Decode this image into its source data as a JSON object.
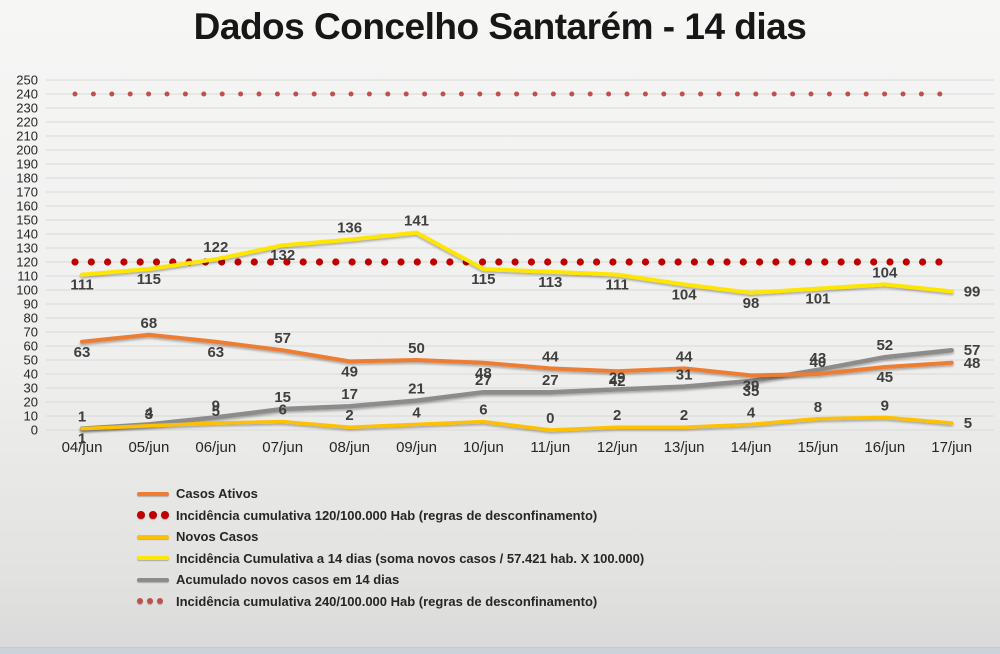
{
  "title": "Dados Concelho Santarém - 14 dias",
  "chart_data": {
    "type": "line",
    "title": "Dados Concelho Santarém - 14 dias",
    "xlabel": "",
    "ylabel": "",
    "ylim": [
      0,
      250
    ],
    "y_tick_step": 10,
    "y_ticks": [
      0,
      10,
      20,
      30,
      40,
      50,
      60,
      70,
      80,
      90,
      100,
      110,
      120,
      130,
      140,
      150,
      160,
      170,
      180,
      190,
      200,
      210,
      220,
      230,
      240,
      250
    ],
    "grid": true,
    "legend_position": "bottom-left",
    "categories": [
      "04/jun",
      "05/jun",
      "06/jun",
      "07/jun",
      "08/jun",
      "09/jun",
      "10/jun",
      "11/jun",
      "12/jun",
      "13/jun",
      "14/jun",
      "15/jun",
      "16/jun",
      "17/jun"
    ],
    "series": [
      {
        "name": "Acumulado novos casos em 14 dias",
        "color": "#8C8C8C",
        "stroke_width": 4.5,
        "values": [
          1,
          4,
          9,
          15,
          17,
          21,
          27,
          27,
          29,
          31,
          35,
          43,
          52,
          57
        ],
        "label_pos": [
          "a",
          "a",
          "a",
          "a",
          "a",
          "a",
          "a",
          "a",
          "a",
          "a",
          "b",
          "a",
          "a",
          "r"
        ]
      },
      {
        "name": "Casos Ativos",
        "color": "#ED7D31",
        "stroke_width": 4,
        "values": [
          63,
          68,
          63,
          57,
          49,
          50,
          48,
          44,
          42,
          44,
          39,
          40,
          45,
          48
        ],
        "label_pos": [
          "b",
          "a",
          "b",
          "a",
          "b",
          "a",
          "b",
          "a",
          "b",
          "a",
          "b",
          "a",
          "b",
          "r"
        ]
      },
      {
        "name": "Novos Casos",
        "color": "#FFC000",
        "stroke_width": 3.5,
        "values": [
          1,
          3,
          5,
          6,
          2,
          4,
          6,
          0,
          2,
          2,
          4,
          8,
          9,
          5
        ],
        "label_pos": [
          "b",
          "a",
          "a",
          "a",
          "a",
          "a",
          "a",
          "a",
          "a",
          "a",
          "a",
          "a",
          "a",
          "r"
        ]
      },
      {
        "name": "Incidência Cumulativa a 14 dias (soma novos casos / 57.421 hab. X 100.000)",
        "color": "#FFE600",
        "stroke_width": 4,
        "values": [
          111,
          115,
          122,
          132,
          136,
          141,
          115,
          113,
          111,
          104,
          98,
          101,
          104,
          99
        ],
        "label_pos": [
          "b",
          "b",
          "a",
          "b",
          "a",
          "a",
          "b",
          "b",
          "b",
          "b",
          "b",
          "b",
          "a",
          "r"
        ]
      }
    ],
    "thresholds": [
      {
        "name": "Incidência cumulativa 120/100.000 Hab (regras de desconfinamento)",
        "value": 120,
        "color": "#C00000",
        "dot_radius": 3.6,
        "dot_gap": 16.3
      },
      {
        "name": "Incidência cumulativa 240/100.000 Hab (regras de desconfinamento)",
        "value": 240,
        "color": "#C0504D",
        "dot_radius": 2.5,
        "dot_gap": 18.4
      }
    ]
  },
  "legend": {
    "items": [
      {
        "label": "Casos Ativos",
        "marker": "line",
        "color": "#ED7D31"
      },
      {
        "label": "Incidência cumulativa 120/100.000 Hab (regras de desconfinamento)",
        "marker": "dots",
        "color": "#C00000",
        "dot_size": 8
      },
      {
        "label": "Novos Casos",
        "marker": "line",
        "color": "#FFC000"
      },
      {
        "label": "Incidência Cumulativa a 14 dias (soma novos casos / 57.421 hab. X 100.000)",
        "marker": "line",
        "color": "#FFE600"
      },
      {
        "label": "Acumulado novos casos em 14 dias",
        "marker": "line",
        "color": "#8C8C8C"
      },
      {
        "label": "Incidência cumulativa 240/100.000 Hab (regras de desconfinamento)",
        "marker": "dots",
        "color": "#C0504D",
        "dot_size": 6
      }
    ]
  }
}
